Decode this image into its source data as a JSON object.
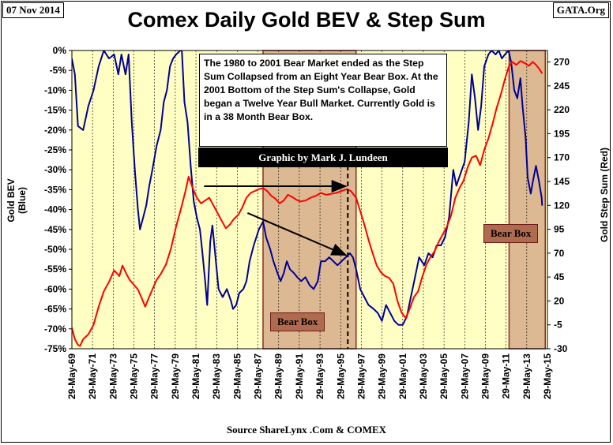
{
  "header": {
    "date": "07 Nov 2014",
    "org": "GATA.Org",
    "title": "Comex Daily Gold BEV & Step Sum"
  },
  "annotation": {
    "text": "The 1980 to 2001 Bear Market ended as the Step Sum Collapsed from an Eight Year Bear Box.  At the  2001 Bottom of the Step Sum's Collapse, Gold began a Twelve Year Bull Market.  Currently Gold is in a  38 Month Bear Box.",
    "credit": "Graphic by Mark J. Lundeen"
  },
  "bear_box_labels": [
    "Bear Box",
    "Bear Box"
  ],
  "source": "Source ShareLynx .Com & COMEX",
  "colors": {
    "plot_bg": "#ffffc4",
    "bev_line": "#000099",
    "step_line": "#ff0000",
    "bear_box_fill": "#dcb992",
    "bear_box_border": "#8b2a2a"
  },
  "chart_data": {
    "type": "line",
    "title": "Comex Daily Gold BEV & Step Sum",
    "ylabel_left": "Gold BEV   (Blue)",
    "ylabel_right": "Gold Step Sum   (Red)",
    "x_ticks": [
      "29-May-69",
      "29-May-71",
      "29-May-73",
      "29-May-75",
      "29-May-77",
      "29-May-79",
      "29-May-81",
      "29-May-83",
      "29-May-85",
      "29-May-87",
      "29-May-89",
      "29-May-91",
      "29-May-93",
      "29-May-95",
      "29-May-97",
      "29-May-99",
      "29-May-01",
      "29-May-03",
      "29-May-05",
      "29-May-07",
      "29-May-09",
      "29-May-11",
      "29-May-13",
      "29-May-15"
    ],
    "xlim": [
      1969.41,
      2015.41
    ],
    "left_axis": {
      "ticks": [
        "0%",
        "-5%",
        "-10%",
        "-15%",
        "-20%",
        "-25%",
        "-30%",
        "-35%",
        "-40%",
        "-45%",
        "-50%",
        "-55%",
        "-60%",
        "-65%",
        "-70%",
        "-75%"
      ],
      "ylim": [
        -75,
        0
      ]
    },
    "right_axis": {
      "ticks": [
        "270",
        "245",
        "220",
        "195",
        "170",
        "145",
        "120",
        "95",
        "70",
        "45",
        "20",
        "-5",
        "-30"
      ],
      "ylim": [
        -30,
        282
      ]
    },
    "grid": "vertical",
    "bear_boxes": [
      [
        1987.9,
        1996.9
      ],
      [
        2011.7,
        2015.2
      ]
    ],
    "series": [
      {
        "name": "Gold BEV",
        "axis": "left",
        "points": [
          [
            1969.4,
            -2
          ],
          [
            1969.7,
            -6
          ],
          [
            1970.0,
            -19
          ],
          [
            1970.5,
            -20
          ],
          [
            1971.0,
            -14
          ],
          [
            1971.5,
            -10
          ],
          [
            1972.0,
            -4
          ],
          [
            1972.5,
            0
          ],
          [
            1973.0,
            -2
          ],
          [
            1973.5,
            -1
          ],
          [
            1973.9,
            -6
          ],
          [
            1974.2,
            -1
          ],
          [
            1974.6,
            -6
          ],
          [
            1974.9,
            -1
          ],
          [
            1975.2,
            -18
          ],
          [
            1975.5,
            -30
          ],
          [
            1975.8,
            -40
          ],
          [
            1976.0,
            -45
          ],
          [
            1976.3,
            -42
          ],
          [
            1976.6,
            -39
          ],
          [
            1976.9,
            -34
          ],
          [
            1977.2,
            -30
          ],
          [
            1977.6,
            -24
          ],
          [
            1978.0,
            -20
          ],
          [
            1978.3,
            -13
          ],
          [
            1978.6,
            -10
          ],
          [
            1978.9,
            -4
          ],
          [
            1979.2,
            -2
          ],
          [
            1979.5,
            -1
          ],
          [
            1979.9,
            0
          ],
          [
            1980.05,
            0
          ],
          [
            1980.3,
            -13
          ],
          [
            1980.6,
            -18
          ],
          [
            1980.9,
            -29
          ],
          [
            1981.2,
            -38
          ],
          [
            1981.5,
            -42
          ],
          [
            1981.8,
            -45
          ],
          [
            1982.0,
            -50
          ],
          [
            1982.3,
            -58
          ],
          [
            1982.5,
            -64
          ],
          [
            1982.8,
            -48
          ],
          [
            1983.0,
            -44
          ],
          [
            1983.3,
            -52
          ],
          [
            1983.6,
            -60
          ],
          [
            1984.0,
            -62
          ],
          [
            1984.4,
            -60
          ],
          [
            1984.8,
            -63
          ],
          [
            1985.0,
            -65
          ],
          [
            1985.3,
            -64
          ],
          [
            1985.6,
            -61
          ],
          [
            1986.0,
            -60
          ],
          [
            1986.3,
            -58
          ],
          [
            1986.6,
            -53
          ],
          [
            1987.0,
            -49
          ],
          [
            1987.5,
            -45
          ],
          [
            1987.9,
            -43
          ],
          [
            1988.2,
            -47
          ],
          [
            1988.6,
            -50
          ],
          [
            1988.9,
            -53
          ],
          [
            1989.3,
            -56
          ],
          [
            1989.6,
            -58
          ],
          [
            1989.9,
            -56
          ],
          [
            1990.2,
            -53
          ],
          [
            1990.5,
            -55
          ],
          [
            1990.9,
            -56
          ],
          [
            1991.2,
            -57
          ],
          [
            1991.6,
            -58
          ],
          [
            1992.0,
            -57
          ],
          [
            1992.4,
            -59
          ],
          [
            1992.8,
            -60
          ],
          [
            1993.2,
            -58
          ],
          [
            1993.5,
            -53
          ],
          [
            1993.9,
            -53
          ],
          [
            1994.3,
            -52
          ],
          [
            1994.7,
            -53
          ],
          [
            1995.1,
            -54
          ],
          [
            1995.5,
            -53
          ],
          [
            1995.9,
            -52
          ],
          [
            1996.3,
            -51
          ],
          [
            1996.6,
            -52
          ],
          [
            1996.9,
            -55
          ],
          [
            1997.3,
            -60
          ],
          [
            1997.7,
            -62
          ],
          [
            1998.1,
            -64
          ],
          [
            1998.6,
            -65
          ],
          [
            1999.0,
            -66
          ],
          [
            1999.4,
            -68
          ],
          [
            1999.8,
            -64
          ],
          [
            2000.2,
            -66
          ],
          [
            2000.6,
            -68
          ],
          [
            2001.0,
            -69
          ],
          [
            2001.4,
            -69
          ],
          [
            2001.8,
            -67
          ],
          [
            2002.2,
            -62
          ],
          [
            2002.6,
            -57
          ],
          [
            2003.0,
            -52
          ],
          [
            2003.5,
            -54
          ],
          [
            2003.9,
            -51
          ],
          [
            2004.3,
            -52
          ],
          [
            2004.7,
            -49
          ],
          [
            2005.1,
            -49
          ],
          [
            2005.5,
            -47
          ],
          [
            2005.9,
            -42
          ],
          [
            2006.3,
            -30
          ],
          [
            2006.6,
            -34
          ],
          [
            2007.0,
            -31
          ],
          [
            2007.4,
            -28
          ],
          [
            2007.8,
            -18
          ],
          [
            2008.1,
            -6
          ],
          [
            2008.4,
            -12
          ],
          [
            2008.7,
            -20
          ],
          [
            2009.0,
            -14
          ],
          [
            2009.3,
            -4
          ],
          [
            2009.7,
            -1
          ],
          [
            2010.0,
            0
          ],
          [
            2010.4,
            -1
          ],
          [
            2010.7,
            0
          ],
          [
            2011.0,
            -2
          ],
          [
            2011.3,
            -1
          ],
          [
            2011.65,
            0
          ],
          [
            2011.9,
            -3
          ],
          [
            2012.2,
            -10
          ],
          [
            2012.5,
            -12
          ],
          [
            2012.8,
            -7
          ],
          [
            2013.0,
            -14
          ],
          [
            2013.3,
            -22
          ],
          [
            2013.5,
            -32
          ],
          [
            2013.8,
            -36
          ],
          [
            2014.0,
            -33
          ],
          [
            2014.3,
            -29
          ],
          [
            2014.6,
            -33
          ],
          [
            2014.85,
            -37
          ],
          [
            2014.9,
            -39
          ]
        ]
      },
      {
        "name": "Gold Step Sum",
        "axis": "right",
        "points": [
          [
            1969.4,
            -8
          ],
          [
            1969.7,
            -20
          ],
          [
            1970.0,
            -26
          ],
          [
            1970.2,
            -27
          ],
          [
            1970.5,
            -20
          ],
          [
            1971.0,
            -15
          ],
          [
            1971.5,
            -5
          ],
          [
            1972.0,
            14
          ],
          [
            1972.5,
            30
          ],
          [
            1973.0,
            40
          ],
          [
            1973.5,
            52
          ],
          [
            1974.0,
            46
          ],
          [
            1974.3,
            57
          ],
          [
            1974.7,
            48
          ],
          [
            1975.0,
            42
          ],
          [
            1975.4,
            37
          ],
          [
            1975.8,
            32
          ],
          [
            1976.2,
            22
          ],
          [
            1976.5,
            14
          ],
          [
            1976.8,
            22
          ],
          [
            1977.2,
            32
          ],
          [
            1977.6,
            42
          ],
          [
            1978.0,
            48
          ],
          [
            1978.5,
            58
          ],
          [
            1979.0,
            75
          ],
          [
            1979.5,
            98
          ],
          [
            1980.0,
            118
          ],
          [
            1980.4,
            135
          ],
          [
            1980.7,
            150
          ],
          [
            1981.1,
            138
          ],
          [
            1981.5,
            128
          ],
          [
            1981.9,
            122
          ],
          [
            1982.3,
            125
          ],
          [
            1982.7,
            128
          ],
          [
            1983.1,
            120
          ],
          [
            1983.5,
            112
          ],
          [
            1983.9,
            104
          ],
          [
            1984.3,
            96
          ],
          [
            1984.7,
            100
          ],
          [
            1985.1,
            106
          ],
          [
            1985.5,
            110
          ],
          [
            1985.9,
            118
          ],
          [
            1986.3,
            128
          ],
          [
            1986.7,
            133
          ],
          [
            1987.1,
            135
          ],
          [
            1987.5,
            137
          ],
          [
            1987.9,
            138
          ],
          [
            1988.3,
            135
          ],
          [
            1988.7,
            130
          ],
          [
            1989.1,
            127
          ],
          [
            1989.5,
            122
          ],
          [
            1989.9,
            125
          ],
          [
            1990.3,
            131
          ],
          [
            1990.7,
            129
          ],
          [
            1991.1,
            126
          ],
          [
            1991.5,
            124
          ],
          [
            1992.0,
            125
          ],
          [
            1992.5,
            128
          ],
          [
            1993.0,
            130
          ],
          [
            1993.5,
            133
          ],
          [
            1994.0,
            131
          ],
          [
            1994.5,
            132
          ],
          [
            1995.0,
            133
          ],
          [
            1995.5,
            135
          ],
          [
            1996.0,
            137
          ],
          [
            1996.4,
            135
          ],
          [
            1996.9,
            128
          ],
          [
            1997.3,
            114
          ],
          [
            1997.7,
            100
          ],
          [
            1998.1,
            84
          ],
          [
            1998.5,
            70
          ],
          [
            1998.9,
            57
          ],
          [
            1999.3,
            50
          ],
          [
            1999.7,
            46
          ],
          [
            2000.1,
            44
          ],
          [
            2000.5,
            38
          ],
          [
            2000.9,
            20
          ],
          [
            2001.3,
            8
          ],
          [
            2001.7,
            2
          ],
          [
            2002.1,
            12
          ],
          [
            2002.5,
            24
          ],
          [
            2002.9,
            30
          ],
          [
            2003.3,
            45
          ],
          [
            2003.7,
            58
          ],
          [
            2004.1,
            66
          ],
          [
            2004.5,
            72
          ],
          [
            2004.9,
            82
          ],
          [
            2005.3,
            90
          ],
          [
            2005.7,
            98
          ],
          [
            2006.1,
            110
          ],
          [
            2006.5,
            128
          ],
          [
            2006.9,
            138
          ],
          [
            2007.3,
            146
          ],
          [
            2007.7,
            160
          ],
          [
            2008.1,
            170
          ],
          [
            2008.5,
            172
          ],
          [
            2008.9,
            162
          ],
          [
            2009.3,
            178
          ],
          [
            2009.7,
            190
          ],
          [
            2010.1,
            205
          ],
          [
            2010.5,
            222
          ],
          [
            2010.9,
            236
          ],
          [
            2011.3,
            252
          ],
          [
            2011.7,
            266
          ],
          [
            2012.0,
            270
          ],
          [
            2012.4,
            267
          ],
          [
            2012.8,
            271
          ],
          [
            2013.2,
            269
          ],
          [
            2013.6,
            266
          ],
          [
            2014.0,
            270
          ],
          [
            2014.3,
            267
          ],
          [
            2014.6,
            263
          ],
          [
            2014.9,
            258
          ]
        ]
      }
    ],
    "arrows": [
      {
        "from": [
          1982.2,
          140
        ],
        "to": [
          1995.9,
          140
        ]
      },
      {
        "from": [
          1986.4,
          112
        ],
        "to": [
          1995.9,
          68
        ]
      }
    ],
    "dashed_line_x": 1996.1
  }
}
